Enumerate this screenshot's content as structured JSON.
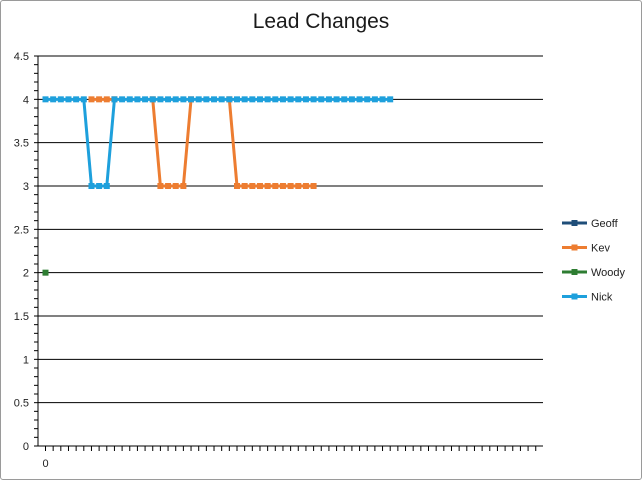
{
  "chart_data": {
    "type": "line",
    "title": "Lead Changes",
    "xlabel": "",
    "ylabel": "",
    "ylim": [
      0,
      4.5
    ],
    "y_ticks": [
      "0",
      "0.5",
      "1",
      "1.5",
      "2",
      "2.5",
      "3",
      "3.5",
      "4",
      "4.5"
    ],
    "x_tick_labels": [
      "0"
    ],
    "grid": true,
    "legend_position": "right",
    "series": [
      {
        "name": "Geoff",
        "color": "#1f4e79",
        "values": []
      },
      {
        "name": "Kev",
        "color": "#ed7d31",
        "values": [
          null,
          null,
          null,
          null,
          null,
          null,
          4,
          4,
          4,
          4,
          null,
          null,
          null,
          null,
          4,
          3,
          3,
          3,
          3,
          4,
          null,
          null,
          null,
          null,
          4,
          3,
          3,
          3,
          3,
          3,
          3,
          3,
          3,
          3,
          3,
          3
        ]
      },
      {
        "name": "Woody",
        "color": "#2e7d32",
        "values": [
          2
        ]
      },
      {
        "name": "Nick",
        "color": "#1ea0dc",
        "values": [
          4,
          4,
          4,
          4,
          4,
          4,
          3,
          3,
          3,
          4,
          4,
          4,
          4,
          4,
          4,
          4,
          4,
          4,
          4,
          4,
          4,
          4,
          4,
          4,
          4,
          4,
          4,
          4,
          4,
          4,
          4,
          4,
          4,
          4,
          4,
          4,
          4,
          4,
          4,
          4,
          4,
          4,
          4,
          4,
          4,
          4
        ]
      }
    ]
  }
}
